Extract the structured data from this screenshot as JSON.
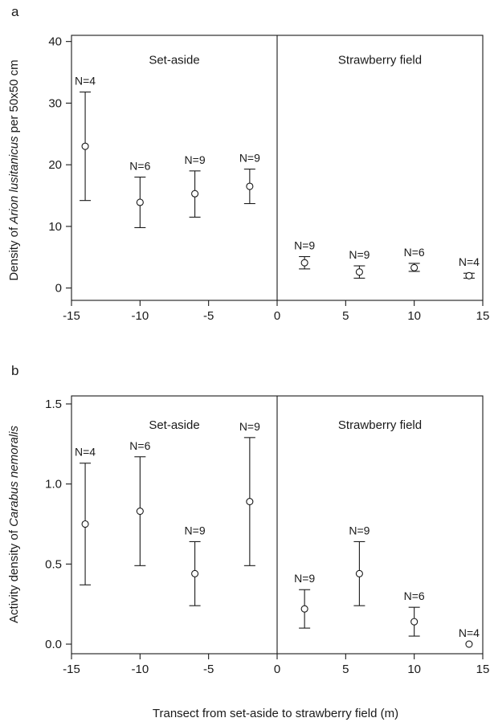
{
  "figure": {
    "xlabel": "Transect from set-aside to strawberry field (m)"
  },
  "chart_data": [
    {
      "type": "scatter",
      "panel_label": "a",
      "ylabel_prefix": "Density of ",
      "ylabel_species": "Arion lusitanicus",
      "ylabel_suffix": " per 50x50 cm",
      "xlim": [
        -15,
        15
      ],
      "ylim": [
        -2,
        41
      ],
      "xticks": [
        -15,
        -10,
        -5,
        0,
        5,
        10,
        15
      ],
      "yticks": [
        0,
        10,
        20,
        30,
        40
      ],
      "divider_x": 0,
      "region_labels": [
        {
          "text": "Set-aside",
          "x": -7.5,
          "y": 37
        },
        {
          "text": "Strawberry field",
          "x": 7.5,
          "y": 37
        }
      ],
      "points": [
        {
          "x": -14,
          "y": 23.0,
          "lo": 14.2,
          "hi": 31.8,
          "n": "N=4"
        },
        {
          "x": -10,
          "y": 13.9,
          "lo": 9.8,
          "hi": 18.0,
          "n": "N=6"
        },
        {
          "x": -6,
          "y": 15.3,
          "lo": 11.5,
          "hi": 19.0,
          "n": "N=9"
        },
        {
          "x": -2,
          "y": 16.5,
          "lo": 13.7,
          "hi": 19.3,
          "n": "N=9"
        },
        {
          "x": 2,
          "y": 4.1,
          "lo": 3.1,
          "hi": 5.1,
          "n": "N=9"
        },
        {
          "x": 6,
          "y": 2.6,
          "lo": 1.6,
          "hi": 3.6,
          "n": "N=9"
        },
        {
          "x": 10,
          "y": 3.3,
          "lo": 2.7,
          "hi": 4.0,
          "n": "N=6"
        },
        {
          "x": 14,
          "y": 2.0,
          "lo": 1.6,
          "hi": 2.4,
          "n": "N=4"
        }
      ]
    },
    {
      "type": "scatter",
      "panel_label": "b",
      "ylabel_prefix": "Activity density of ",
      "ylabel_species": "Carabus nemoralis",
      "ylabel_suffix": "",
      "xlim": [
        -15,
        15
      ],
      "ylim": [
        -0.06,
        1.55
      ],
      "xticks": [
        -15,
        -10,
        -5,
        0,
        5,
        10,
        15
      ],
      "yticks": [
        "0.0",
        "0.5",
        "1.0",
        "1.5"
      ],
      "divider_x": 0,
      "region_labels": [
        {
          "text": "Set-aside",
          "x": -7.5,
          "y": 1.37
        },
        {
          "text": "Strawberry field",
          "x": 7.5,
          "y": 1.37
        }
      ],
      "points": [
        {
          "x": -14,
          "y": 0.75,
          "lo": 0.37,
          "hi": 1.13,
          "n": "N=4"
        },
        {
          "x": -10,
          "y": 0.83,
          "lo": 0.49,
          "hi": 1.17,
          "n": "N=6"
        },
        {
          "x": -6,
          "y": 0.44,
          "lo": 0.24,
          "hi": 0.64,
          "n": "N=9"
        },
        {
          "x": -2,
          "y": 0.89,
          "lo": 0.49,
          "hi": 1.29,
          "n": "N=9"
        },
        {
          "x": 2,
          "y": 0.22,
          "lo": 0.1,
          "hi": 0.34,
          "n": "N=9"
        },
        {
          "x": 6,
          "y": 0.44,
          "lo": 0.24,
          "hi": 0.64,
          "n": "N=9"
        },
        {
          "x": 10,
          "y": 0.14,
          "lo": 0.05,
          "hi": 0.23,
          "n": "N=6"
        },
        {
          "x": 14,
          "y": 0.0,
          "lo": 0.0,
          "hi": 0.0,
          "n": "N=4"
        }
      ]
    }
  ]
}
